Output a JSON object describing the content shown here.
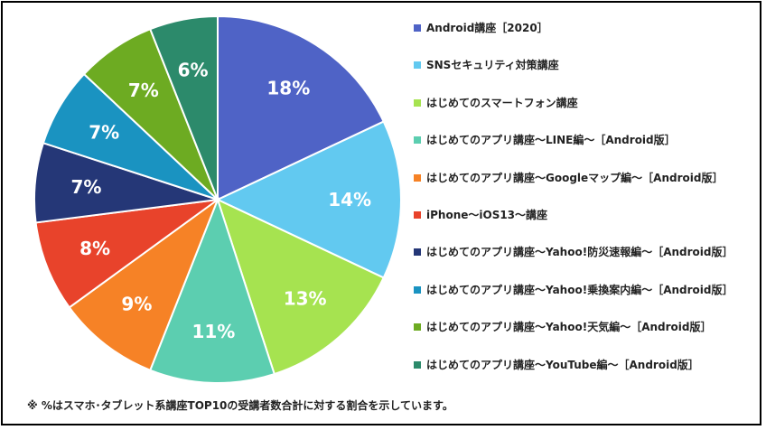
{
  "chart_data": {
    "type": "pie",
    "categories": [
      "Android講座［2020］",
      "SNSセキュリティ対策講座",
      "はじめてのスマートフォン講座",
      "はじめてのアプリ講座～LINE編～［Android版］",
      "はじめてのアプリ講座～Googleマップ編～［Android版］",
      "iPhone～iOS13～講座",
      "はじめてのアプリ講座～Yahoo!防災速報編～［Android版］",
      "はじめてのアプリ講座～Yahoo!乗換案内編～［Android版］",
      "はじめてのアプリ講座～Yahoo!天気編～［Android版］",
      "はじめてのアプリ講座～YouTube編～［Android版］"
    ],
    "values": [
      18,
      14,
      13,
      11,
      9,
      8,
      7,
      7,
      7,
      6
    ],
    "labels": [
      "18%",
      "14%",
      "13%",
      "11%",
      "9%",
      "8%",
      "7%",
      "7%",
      "7%",
      "6%"
    ],
    "colors": [
      "#4f63c6",
      "#62c9f0",
      "#a6e350",
      "#5cceb0",
      "#f68226",
      "#e8432b",
      "#253777",
      "#1a93c1",
      "#6dab22",
      "#2c8a6b"
    ],
    "legend_position": "right"
  },
  "footnote": "※ %はスマホ･タブレット系講座TOP10の受講者数合計に対する割合を示しています。"
}
